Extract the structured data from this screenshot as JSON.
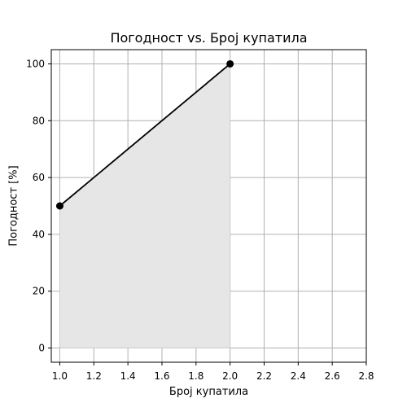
{
  "chart_data": {
    "type": "area",
    "title": "Погодност vs. Број купатила",
    "xlabel": "Број купатила",
    "ylabel": "Погодност [%]",
    "x": [
      1.0,
      2.0
    ],
    "series": [
      {
        "values": [
          50,
          100
        ]
      }
    ],
    "xlim": [
      0.95,
      2.8
    ],
    "ylim": [
      -5,
      105
    ],
    "xticks": [
      1.0,
      1.2,
      1.4,
      1.6,
      1.8,
      2.0,
      2.2,
      2.4,
      2.6,
      2.8
    ],
    "xtick_labels": [
      "1.0",
      "1.2",
      "1.4",
      "1.6",
      "1.8",
      "2.0",
      "2.2",
      "2.4",
      "2.6",
      "2.8"
    ],
    "yticks": [
      0,
      20,
      40,
      60,
      80,
      100
    ],
    "ytick_labels": [
      "0",
      "20",
      "40",
      "60",
      "80",
      "100"
    ],
    "grid": true,
    "colors": {
      "line": "#000000",
      "marker": "#000000",
      "fill": "#e6e6e6",
      "grid": "#b0b0b0"
    }
  }
}
